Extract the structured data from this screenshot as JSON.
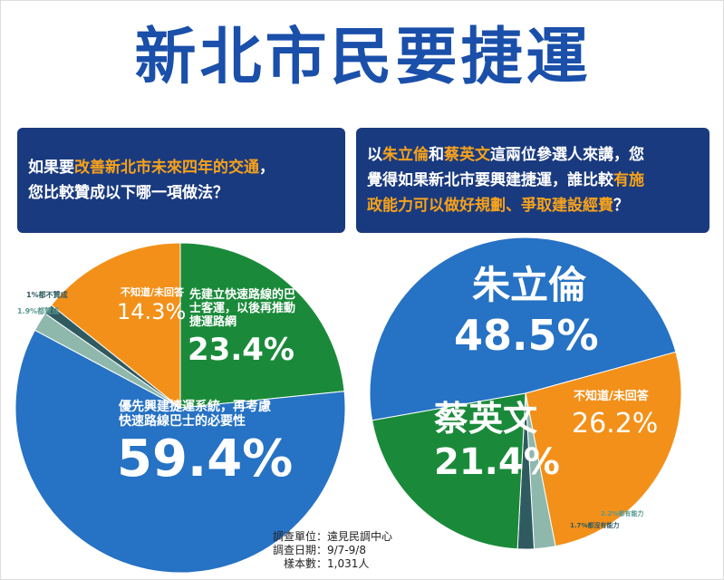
{
  "title": "新北市民要捷運",
  "highlight_color": "#f7a21a",
  "chart_data": [
    {
      "type": "pie",
      "question": [
        [
          {
            "text": "如果要",
            "highlight": false
          },
          {
            "text": "改善新北市未來四年的交通",
            "highlight": true
          },
          {
            "text": "，",
            "highlight": false
          }
        ],
        [
          {
            "text": "您比較贊成以下哪一項做法？",
            "highlight": false
          }
        ]
      ],
      "categories": [
        "先建立快速路線的巴士客運，以後再推動捷運路網",
        "優先興建捷運系統，再考慮快速路線巴士的必要性",
        "都贊成",
        "都不贊成",
        "不知道/未回答"
      ],
      "values": [
        23.4,
        59.4,
        1.9,
        1,
        14.3
      ],
      "value_labels": [
        "23.4%",
        "59.4%",
        "1.9%",
        "1%",
        "14.3%"
      ],
      "colors": [
        "#1a8a3a",
        "#2672c4",
        "#8fb8ad",
        "#2f5a60",
        "#f39019"
      ]
    },
    {
      "type": "pie",
      "question": [
        [
          {
            "text": "以",
            "highlight": false
          },
          {
            "text": "朱立倫",
            "highlight": true
          },
          {
            "text": "和",
            "highlight": false
          },
          {
            "text": "蔡英文",
            "highlight": true
          },
          {
            "text": "這兩位參選人來講，您",
            "highlight": false
          }
        ],
        [
          {
            "text": "覺得如果新北市要興建捷運，誰比較",
            "highlight": false
          },
          {
            "text": "有施",
            "highlight": true
          }
        ],
        [
          {
            "text": "政能力可以做好規劃、爭取建設經費",
            "highlight": true
          },
          {
            "text": "？",
            "highlight": false
          }
        ]
      ],
      "categories": [
        "朱立倫",
        "不知道/未回答",
        "都有能力",
        "都沒有能力",
        "蔡英文"
      ],
      "values": [
        48.5,
        26.2,
        2.2,
        1.7,
        21.4
      ],
      "value_labels": [
        "48.5%",
        "26.2%",
        "2.2%",
        "1.7%",
        "21.4%"
      ],
      "colors": [
        "#2672c4",
        "#f39019",
        "#8fb8ad",
        "#2f5a60",
        "#1a8a3a"
      ]
    }
  ],
  "footer": [
    "調查單位：遠見民調中心",
    "調查日期：9/7-9/8",
    "樣本數：1,031人"
  ]
}
